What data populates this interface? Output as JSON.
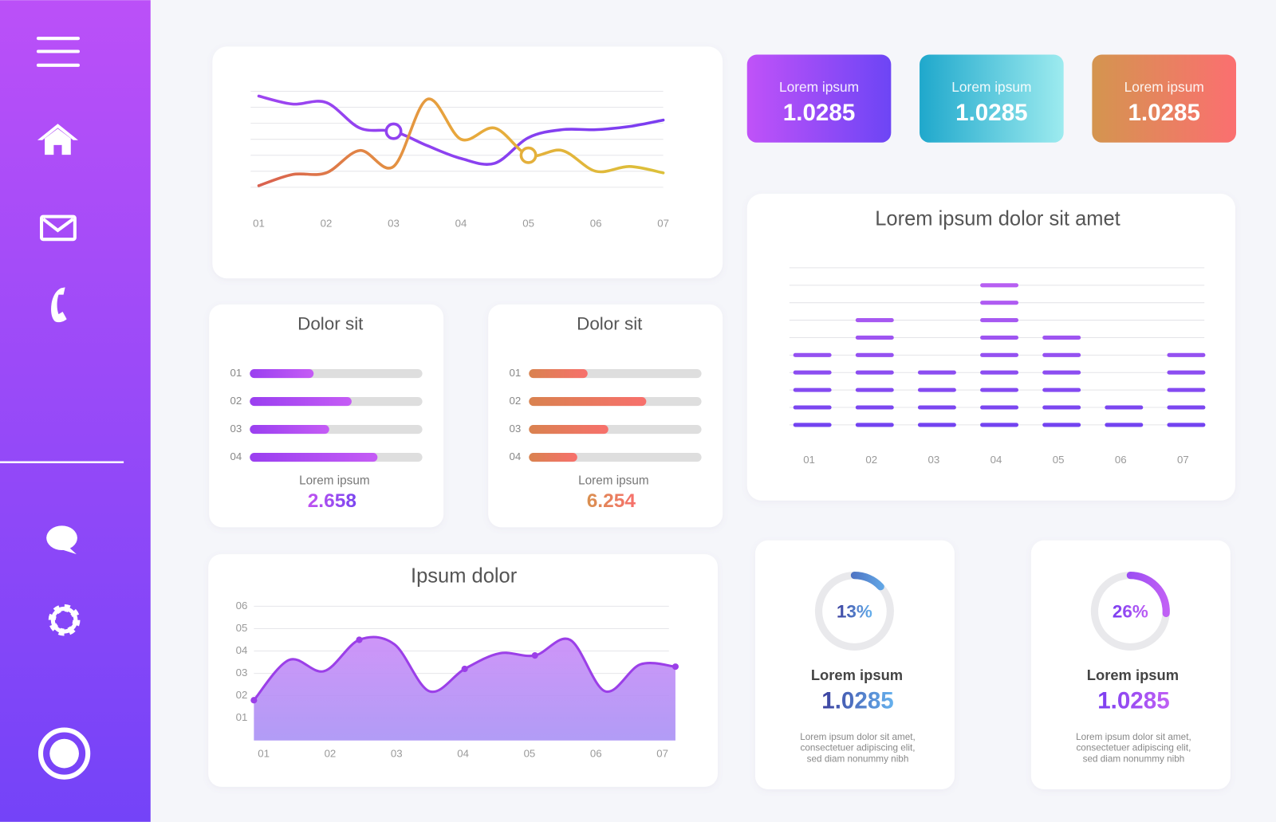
{
  "stats": [
    {
      "label": "Lorem ipsum",
      "value": "1.0285",
      "colors": [
        "#c052f8",
        "#6d45f5"
      ]
    },
    {
      "label": "Lorem ipsum",
      "value": "1.0285",
      "colors": [
        "#1fa8cc",
        "#9debef"
      ]
    },
    {
      "label": "Lorem ipsum",
      "value": "1.0285",
      "colors": [
        "#d4954f",
        "#fb6f70"
      ]
    }
  ],
  "line_chart": {
    "type": "line",
    "x": [
      1,
      1.5,
      2,
      2.5,
      3,
      3.5,
      4,
      4.5,
      5,
      5.5,
      6,
      6.5,
      7
    ],
    "xlim": [
      1,
      7
    ],
    "xticks": [
      {
        "value": 1,
        "label": "01"
      },
      {
        "value": 2,
        "label": "02"
      },
      {
        "value": 3,
        "label": "03"
      },
      {
        "value": 4,
        "label": "04"
      },
      {
        "value": 5,
        "label": "05"
      },
      {
        "value": 6,
        "label": "06"
      },
      {
        "value": 7,
        "label": "07"
      }
    ],
    "ylim": [
      0,
      6
    ],
    "yticks": [
      0,
      1,
      2,
      3,
      4,
      5,
      6
    ],
    "ytick_labels": false,
    "grid": true,
    "series": [
      {
        "colors": [
          "#9d45f0",
          "#7a3df0"
        ],
        "values": [
          5.7,
          5.2,
          5.3,
          3.7,
          3.5,
          2.6,
          1.8,
          1.5,
          3.1,
          3.6,
          3.6,
          3.8,
          4.2
        ],
        "marker_index": 4
      },
      {
        "colors": [
          "#d9604f",
          "#e8a83c",
          "#dcc03a"
        ],
        "values": [
          0.1,
          0.8,
          0.9,
          2.3,
          1.3,
          5.5,
          3.0,
          3.7,
          2.0,
          2.3,
          1.0,
          1.3,
          0.9
        ],
        "marker_index": 8
      }
    ]
  },
  "progress_cards": [
    {
      "type": "bar",
      "title": "Dolor sit",
      "categories": [
        "01",
        "02",
        "03",
        "04"
      ],
      "values": [
        37,
        59,
        46,
        74
      ],
      "xlim": [
        0,
        100
      ],
      "colors": [
        "#9a3ff0",
        "#c55cf5"
      ],
      "footer_label": "Lorem ipsum",
      "footer_value": "2.658",
      "footer_colors": [
        "#c052f0",
        "#7a45f0"
      ]
    },
    {
      "type": "bar",
      "title": "Dolor sit",
      "categories": [
        "01",
        "02",
        "03",
        "04"
      ],
      "values": [
        34,
        68,
        46,
        28
      ],
      "xlim": [
        0,
        100
      ],
      "colors": [
        "#d9824f",
        "#f7706c"
      ],
      "footer_label": "Lorem ipsum",
      "footer_value": "6.254",
      "footer_colors": [
        "#d9904f",
        "#f7706c"
      ]
    }
  ],
  "bar_chart": {
    "type": "bar",
    "title": "Lorem ipsum dolor sit amet",
    "categories": [
      "01",
      "02",
      "03",
      "04",
      "05",
      "06",
      "07"
    ],
    "values": [
      5,
      7,
      4,
      9,
      6,
      2,
      5
    ],
    "ylim": [
      0,
      10
    ],
    "yticks": [
      1,
      2,
      3,
      4,
      5,
      6,
      7,
      8,
      9,
      10
    ],
    "ytick_labels": false,
    "grid": true,
    "colors": [
      "#6a3ff0",
      "#c062f2"
    ]
  },
  "area_chart": {
    "type": "area",
    "title": "Ipsum dolor",
    "x": [
      1,
      1.5,
      2,
      2.5,
      3,
      3.5,
      4,
      4.5,
      5,
      5.5,
      6,
      6.5,
      7
    ],
    "xlim": [
      1,
      7
    ],
    "xticks": [
      {
        "value": 1,
        "label": "01"
      },
      {
        "value": 2,
        "label": "02"
      },
      {
        "value": 3,
        "label": "03"
      },
      {
        "value": 4,
        "label": "04"
      },
      {
        "value": 5,
        "label": "05"
      },
      {
        "value": 6,
        "label": "06"
      },
      {
        "value": 7,
        "label": "07"
      }
    ],
    "ylim": [
      0,
      6
    ],
    "yticks": [
      {
        "value": 1,
        "label": "01"
      },
      {
        "value": 2,
        "label": "02"
      },
      {
        "value": 3,
        "label": "03"
      },
      {
        "value": 4,
        "label": "04"
      },
      {
        "value": 5,
        "label": "05"
      },
      {
        "value": 6,
        "label": "06"
      }
    ],
    "grid": true,
    "color": "#9b3fe8",
    "fill_colors": [
      "#c98af7",
      "#a991f5"
    ],
    "values": [
      1.8,
      3.6,
      3.1,
      4.5,
      4.3,
      2.2,
      3.2,
      3.9,
      3.8,
      4.5,
      2.2,
      3.4,
      3.3
    ],
    "marker_indices": [
      0,
      3,
      6,
      8,
      12
    ]
  },
  "donuts": [
    {
      "type": "donut",
      "value": 13,
      "value_label": "13%",
      "label": "Lorem ipsum",
      "amount": "1.0285",
      "description": [
        "Lorem ipsum dolor sit amet,",
        "consectetuer adipiscing elit,",
        "sed diam nonummy nibh"
      ],
      "colors": [
        "#3b3f9e",
        "#66b2ee"
      ]
    },
    {
      "type": "donut",
      "value": 26,
      "value_label": "26%",
      "label": "Lorem ipsum",
      "amount": "1.0285",
      "description": [
        "Lorem ipsum dolor sit amet,",
        "consectetuer adipiscing elit,",
        "sed diam nonummy nibh"
      ],
      "colors": [
        "#7a3df0",
        "#c060f5"
      ]
    }
  ]
}
